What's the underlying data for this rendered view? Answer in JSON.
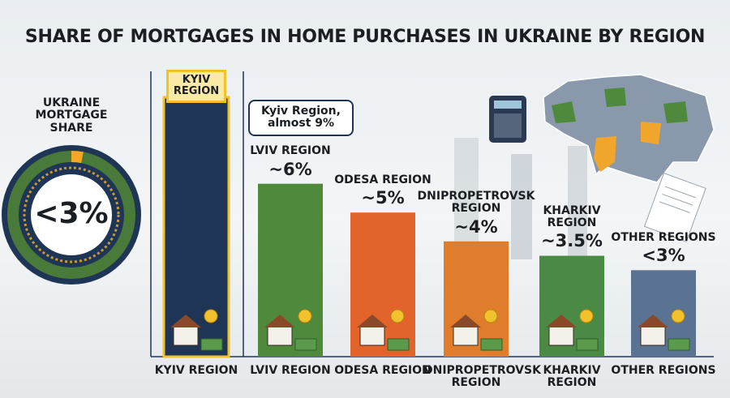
{
  "chart_data": {
    "type": "bar",
    "title": "SHARE OF MORTGAGES IN HOME PURCHASES IN UKRAINE BY REGION",
    "categories": [
      "KYIV REGION",
      "LVIV REGION",
      "ODESA REGION",
      "DNIPROPETROVSK REGION",
      "KHARKIV REGION",
      "OTHER REGIONS"
    ],
    "bar_labels": [
      "KYIV REGION",
      "LVIV REGION",
      "ODESA REGION",
      "DNIPROPETROVSK REGION",
      "KHARKIV REGION",
      "OTHER REGIONS"
    ],
    "values": [
      9,
      6,
      5,
      4,
      3.5,
      3
    ],
    "value_labels": [
      null,
      "~6%",
      "~5%",
      "~4%",
      "~3.5%",
      "<3%"
    ],
    "colors": [
      "#1f3556",
      "#4f8a3c",
      "#e2642a",
      "#e07d2c",
      "#4a8a45",
      "#5a7393"
    ],
    "annotation": "Kyiv Region, almost 9%",
    "national_share": {
      "label": "UKRAINE MORTGAGE SHARE",
      "value": 3,
      "value_label": "<3%",
      "color": "#f5a623"
    }
  }
}
